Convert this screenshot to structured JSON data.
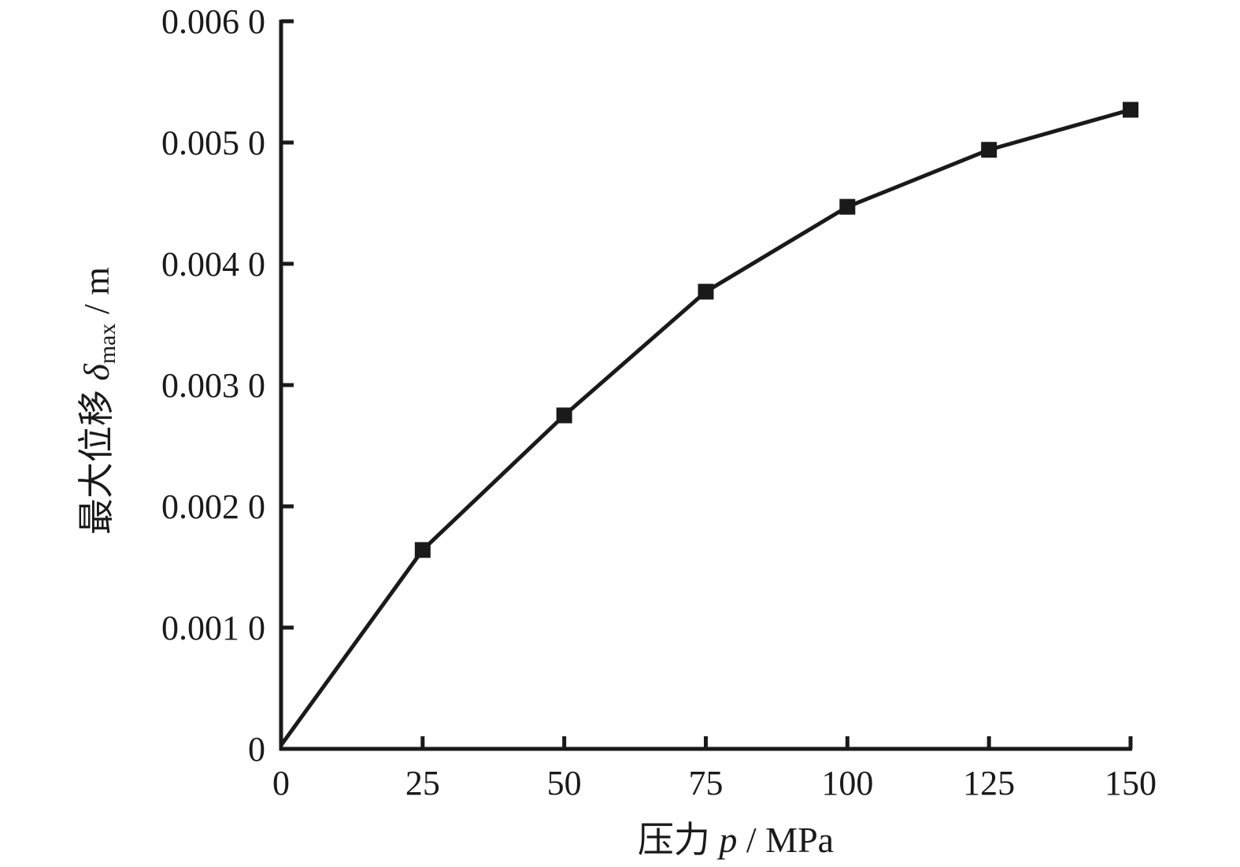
{
  "chart_data": {
    "type": "line",
    "title": "",
    "xlabel": {
      "prefix": "压力 ",
      "symbol": "p",
      "unit": " / MPa"
    },
    "ylabel": {
      "prefix": "最大位移 ",
      "symbol": "δ",
      "subscript": "max",
      "unit": " / m"
    },
    "xlim": [
      0,
      150
    ],
    "ylim": [
      0,
      0.006
    ],
    "x_ticks": [
      0,
      25,
      50,
      75,
      100,
      125,
      150
    ],
    "x_tick_labels": [
      "0",
      "25",
      "50",
      "75",
      "100",
      "125",
      "150"
    ],
    "y_ticks": [
      0,
      0.001,
      0.002,
      0.003,
      0.004,
      0.005,
      0.006
    ],
    "y_tick_labels": [
      "0",
      "0.001 0",
      "0.002 0",
      "0.003 0",
      "0.004 0",
      "0.005 0",
      "0.006 0"
    ],
    "grid": false,
    "series": [
      {
        "x": [
          0,
          25,
          50,
          75,
          100,
          125,
          150
        ],
        "values": [
          3e-05,
          0.00164,
          0.00275,
          0.00377,
          0.00447,
          0.00494,
          0.00527
        ],
        "marker": "square",
        "markers_at": [
          25,
          50,
          75,
          100,
          125,
          150
        ],
        "color": "#1a1a1a"
      }
    ]
  }
}
